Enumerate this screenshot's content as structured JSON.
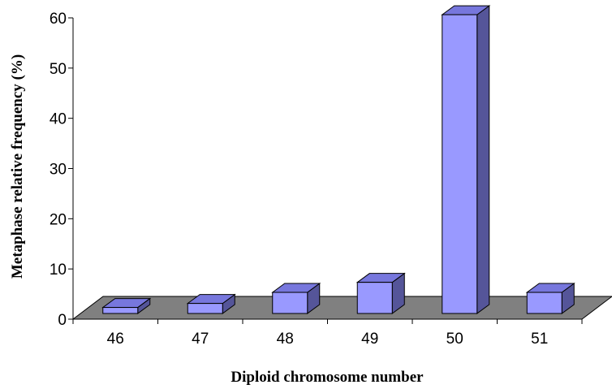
{
  "chart_data": {
    "type": "bar",
    "title": "",
    "xlabel": "Diploid chromosome number",
    "ylabel": "Metaphase relative frequency (%)",
    "categories": [
      "46",
      "47",
      "48",
      "49",
      "50",
      "51"
    ],
    "values": [
      1.2,
      2.0,
      4.2,
      6.2,
      59.5,
      4.2
    ],
    "ylim": [
      0,
      60
    ],
    "yticks": [
      "0",
      "10",
      "20",
      "30",
      "40",
      "50",
      "60"
    ],
    "bar_style": "3d",
    "legend": "none",
    "grid": false,
    "colors": {
      "bar_front": "#9999ff",
      "bar_top": "#7777dd",
      "bar_side": "#555599",
      "floor": "#808080",
      "outline": "#000000"
    }
  }
}
